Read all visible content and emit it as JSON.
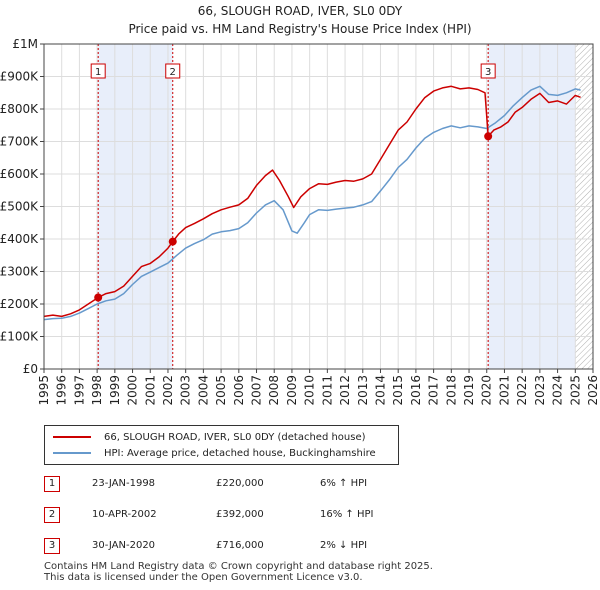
{
  "title": "66, SLOUGH ROAD, IVER, SL0 0DY",
  "subtitle": "Price paid vs. HM Land Registry's House Price Index (HPI)",
  "colors": {
    "property": "#cc0000",
    "hpi": "#6699cc",
    "shade": "#e8eefa",
    "marker_line": "#cc0000"
  },
  "chart_data": {
    "type": "line",
    "xlim": [
      1995,
      2026
    ],
    "ylim": [
      0,
      1000000
    ],
    "x_ticks": [
      "1995",
      "1996",
      "1997",
      "1998",
      "1999",
      "2000",
      "2001",
      "2002",
      "2003",
      "2004",
      "2005",
      "2006",
      "2007",
      "2008",
      "2009",
      "2010",
      "2011",
      "2012",
      "2013",
      "2014",
      "2015",
      "2016",
      "2017",
      "2018",
      "2019",
      "2020",
      "2021",
      "2022",
      "2023",
      "2024",
      "2025",
      "2026"
    ],
    "y_ticks": [
      {
        "v": 0,
        "label": "£0"
      },
      {
        "v": 100000,
        "label": "£100K"
      },
      {
        "v": 200000,
        "label": "£200K"
      },
      {
        "v": 300000,
        "label": "£300K"
      },
      {
        "v": 400000,
        "label": "£400K"
      },
      {
        "v": 500000,
        "label": "£500K"
      },
      {
        "v": 600000,
        "label": "£600K"
      },
      {
        "v": 700000,
        "label": "£700K"
      },
      {
        "v": 800000,
        "label": "£800K"
      },
      {
        "v": 900000,
        "label": "£900K"
      },
      {
        "v": 1000000,
        "label": "£1M"
      }
    ],
    "shaded_ranges": [
      [
        1998.06,
        2002.27
      ],
      [
        2020.08,
        2025.0
      ]
    ],
    "hatched_from": 2025.0,
    "series": [
      {
        "name": "66, SLOUGH ROAD, IVER, SL0 0DY (detached house)",
        "color": "#cc0000",
        "points": [
          [
            1995.0,
            162000
          ],
          [
            1995.5,
            166000
          ],
          [
            1996.0,
            162000
          ],
          [
            1996.5,
            170000
          ],
          [
            1997.0,
            182000
          ],
          [
            1997.5,
            200000
          ],
          [
            1998.06,
            220000
          ],
          [
            1998.5,
            232000
          ],
          [
            1999.0,
            238000
          ],
          [
            1999.5,
            255000
          ],
          [
            2000.0,
            285000
          ],
          [
            2000.5,
            315000
          ],
          [
            2001.0,
            325000
          ],
          [
            2001.5,
            345000
          ],
          [
            2002.0,
            372000
          ],
          [
            2002.27,
            392000
          ],
          [
            2002.6,
            415000
          ],
          [
            2003.0,
            435000
          ],
          [
            2003.5,
            448000
          ],
          [
            2004.0,
            462000
          ],
          [
            2004.5,
            478000
          ],
          [
            2005.0,
            490000
          ],
          [
            2005.5,
            498000
          ],
          [
            2006.0,
            505000
          ],
          [
            2006.5,
            525000
          ],
          [
            2007.0,
            565000
          ],
          [
            2007.5,
            595000
          ],
          [
            2007.9,
            612000
          ],
          [
            2008.3,
            580000
          ],
          [
            2008.8,
            530000
          ],
          [
            2009.1,
            497000
          ],
          [
            2009.5,
            530000
          ],
          [
            2010.0,
            555000
          ],
          [
            2010.5,
            570000
          ],
          [
            2011.0,
            568000
          ],
          [
            2011.5,
            575000
          ],
          [
            2012.0,
            580000
          ],
          [
            2012.5,
            578000
          ],
          [
            2013.0,
            585000
          ],
          [
            2013.5,
            600000
          ],
          [
            2014.0,
            645000
          ],
          [
            2014.5,
            690000
          ],
          [
            2015.0,
            735000
          ],
          [
            2015.5,
            760000
          ],
          [
            2016.0,
            800000
          ],
          [
            2016.5,
            835000
          ],
          [
            2017.0,
            855000
          ],
          [
            2017.5,
            865000
          ],
          [
            2018.0,
            870000
          ],
          [
            2018.5,
            862000
          ],
          [
            2019.0,
            865000
          ],
          [
            2019.5,
            860000
          ],
          [
            2019.9,
            850000
          ],
          [
            2020.08,
            716000
          ],
          [
            2020.4,
            735000
          ],
          [
            2020.8,
            745000
          ],
          [
            2021.2,
            760000
          ],
          [
            2021.6,
            790000
          ],
          [
            2022.0,
            805000
          ],
          [
            2022.5,
            830000
          ],
          [
            2023.0,
            848000
          ],
          [
            2023.5,
            820000
          ],
          [
            2024.0,
            825000
          ],
          [
            2024.5,
            815000
          ],
          [
            2025.0,
            842000
          ],
          [
            2025.3,
            836000
          ]
        ]
      },
      {
        "name": "HPI: Average price, detached house, Buckinghamshire",
        "color": "#6699cc",
        "points": [
          [
            1995.0,
            152000
          ],
          [
            1995.5,
            155000
          ],
          [
            1996.0,
            156000
          ],
          [
            1996.5,
            162000
          ],
          [
            1997.0,
            172000
          ],
          [
            1997.5,
            186000
          ],
          [
            1998.0,
            200000
          ],
          [
            1998.5,
            210000
          ],
          [
            1999.0,
            215000
          ],
          [
            1999.5,
            232000
          ],
          [
            2000.0,
            260000
          ],
          [
            2000.5,
            285000
          ],
          [
            2001.0,
            298000
          ],
          [
            2001.5,
            312000
          ],
          [
            2002.0,
            326000
          ],
          [
            2002.5,
            350000
          ],
          [
            2003.0,
            372000
          ],
          [
            2003.5,
            386000
          ],
          [
            2004.0,
            398000
          ],
          [
            2004.5,
            415000
          ],
          [
            2005.0,
            422000
          ],
          [
            2005.5,
            426000
          ],
          [
            2006.0,
            432000
          ],
          [
            2006.5,
            450000
          ],
          [
            2007.0,
            480000
          ],
          [
            2007.5,
            505000
          ],
          [
            2008.0,
            518000
          ],
          [
            2008.5,
            490000
          ],
          [
            2009.0,
            425000
          ],
          [
            2009.3,
            418000
          ],
          [
            2009.7,
            450000
          ],
          [
            2010.0,
            475000
          ],
          [
            2010.5,
            490000
          ],
          [
            2011.0,
            488000
          ],
          [
            2011.5,
            492000
          ],
          [
            2012.0,
            495000
          ],
          [
            2012.5,
            498000
          ],
          [
            2013.0,
            505000
          ],
          [
            2013.5,
            515000
          ],
          [
            2014.0,
            548000
          ],
          [
            2014.5,
            582000
          ],
          [
            2015.0,
            620000
          ],
          [
            2015.5,
            645000
          ],
          [
            2016.0,
            680000
          ],
          [
            2016.5,
            710000
          ],
          [
            2017.0,
            728000
          ],
          [
            2017.5,
            740000
          ],
          [
            2018.0,
            748000
          ],
          [
            2018.5,
            742000
          ],
          [
            2019.0,
            748000
          ],
          [
            2019.5,
            745000
          ],
          [
            2020.0,
            740000
          ],
          [
            2020.5,
            758000
          ],
          [
            2021.0,
            780000
          ],
          [
            2021.5,
            810000
          ],
          [
            2022.0,
            835000
          ],
          [
            2022.5,
            858000
          ],
          [
            2023.0,
            870000
          ],
          [
            2023.5,
            845000
          ],
          [
            2024.0,
            842000
          ],
          [
            2024.5,
            850000
          ],
          [
            2025.0,
            862000
          ],
          [
            2025.3,
            858000
          ]
        ]
      }
    ],
    "transactions": [
      {
        "id": "1",
        "x": 1998.06,
        "y": 220000,
        "date": "23-JAN-1998",
        "price": "£220,000",
        "hpi": "6% ↑ HPI"
      },
      {
        "id": "2",
        "x": 2002.27,
        "y": 392000,
        "date": "10-APR-2002",
        "price": "£392,000",
        "hpi": "16% ↑ HPI"
      },
      {
        "id": "3",
        "x": 2020.08,
        "y": 716000,
        "date": "30-JAN-2020",
        "price": "£716,000",
        "hpi": "2% ↓ HPI"
      }
    ]
  },
  "legend": {
    "property_label": "66, SLOUGH ROAD, IVER, SL0 0DY (detached house)",
    "hpi_label": "HPI: Average price, detached house, Buckinghamshire"
  },
  "footer": {
    "line1": "Contains HM Land Registry data © Crown copyright and database right 2025.",
    "line2": "This data is licensed under the Open Government Licence v3.0."
  }
}
